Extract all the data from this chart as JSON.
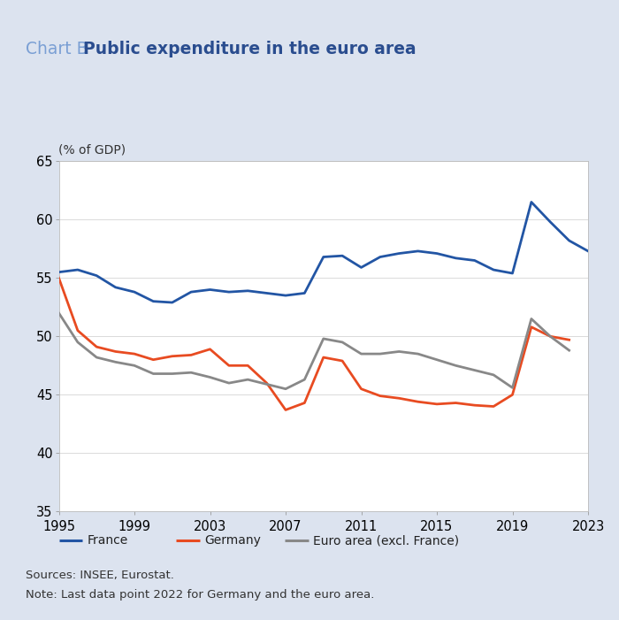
{
  "title_prefix": "Chart B",
  "title_main": "Public expenditure in the euro area",
  "ylabel": "(% of GDP)",
  "background_color": "#dce3ef",
  "plot_bg_color": "#ffffff",
  "xlim": [
    1995,
    2023
  ],
  "ylim": [
    35,
    65
  ],
  "yticks": [
    35,
    40,
    45,
    50,
    55,
    60,
    65
  ],
  "xticks": [
    1995,
    1999,
    2003,
    2007,
    2011,
    2015,
    2019,
    2023
  ],
  "france_color": "#2255a4",
  "germany_color": "#e84b21",
  "euroarea_color": "#888888",
  "france_years": [
    1995,
    1996,
    1997,
    1998,
    1999,
    2000,
    2001,
    2002,
    2003,
    2004,
    2005,
    2006,
    2007,
    2008,
    2009,
    2010,
    2011,
    2012,
    2013,
    2014,
    2015,
    2016,
    2017,
    2018,
    2019,
    2020,
    2021,
    2022,
    2023
  ],
  "france_values": [
    55.5,
    55.7,
    55.2,
    54.2,
    53.8,
    53.0,
    52.9,
    53.8,
    54.0,
    53.8,
    53.9,
    53.7,
    53.5,
    53.7,
    56.8,
    56.9,
    55.9,
    56.8,
    57.1,
    57.3,
    57.1,
    56.7,
    56.5,
    55.7,
    55.4,
    61.5,
    59.8,
    58.2,
    57.3
  ],
  "germany_years": [
    1995,
    1996,
    1997,
    1998,
    1999,
    2000,
    2001,
    2002,
    2003,
    2004,
    2005,
    2006,
    2007,
    2008,
    2009,
    2010,
    2011,
    2012,
    2013,
    2014,
    2015,
    2016,
    2017,
    2018,
    2019,
    2020,
    2021,
    2022
  ],
  "germany_values": [
    55.0,
    50.5,
    49.1,
    48.7,
    48.5,
    48.0,
    48.3,
    48.4,
    48.9,
    47.5,
    47.5,
    46.0,
    43.7,
    44.3,
    48.2,
    47.9,
    45.5,
    44.9,
    44.7,
    44.4,
    44.2,
    44.3,
    44.1,
    44.0,
    45.0,
    50.8,
    50.0,
    49.7
  ],
  "euroarea_years": [
    1995,
    1996,
    1997,
    1998,
    1999,
    2000,
    2001,
    2002,
    2003,
    2004,
    2005,
    2006,
    2007,
    2008,
    2009,
    2010,
    2011,
    2012,
    2013,
    2014,
    2015,
    2016,
    2017,
    2018,
    2019,
    2020,
    2021,
    2022
  ],
  "euroarea_values": [
    52.0,
    49.5,
    48.2,
    47.8,
    47.5,
    46.8,
    46.8,
    46.9,
    46.5,
    46.0,
    46.3,
    45.9,
    45.5,
    46.3,
    49.8,
    49.5,
    48.5,
    48.5,
    48.7,
    48.5,
    48.0,
    47.5,
    47.1,
    46.7,
    45.6,
    51.5,
    50.0,
    48.8
  ],
  "legend_labels": [
    "France",
    "Germany",
    "Euro area (excl. France)"
  ],
  "source_text": "Sources: INSEE, Eurostat.",
  "note_text": "Note: Last data point 2022 for Germany and the euro area.",
  "france_legend_color": "#2255a4",
  "germany_legend_color": "#e84b21",
  "euroarea_legend_color": "#888888",
  "line_width": 2.0,
  "tick_label_fontsize": 10.5,
  "legend_fontsize": 10,
  "source_fontsize": 9.5,
  "title_fontsize": 13.5,
  "ylabel_fontsize": 10
}
